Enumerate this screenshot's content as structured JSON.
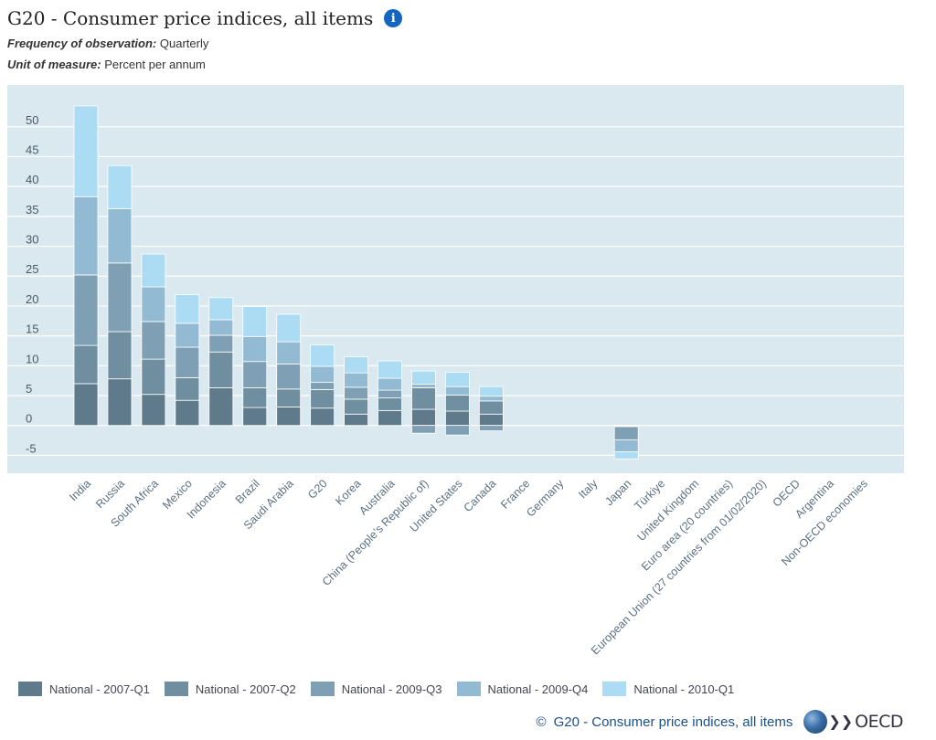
{
  "header": {
    "title": "G20 - Consumer price indices, all items",
    "frequency_label": "Frequency of observation:",
    "frequency_value": "Quarterly",
    "unit_label": "Unit of measure:",
    "unit_value": "Percent per annum"
  },
  "footer": {
    "copyright_symbol": "©",
    "source_text": "G20 - Consumer price indices, all items",
    "logo_text": "OECD"
  },
  "chart_data": {
    "type": "bar",
    "stacked": true,
    "ylim": [
      -8,
      57
    ],
    "yticks": [
      -5,
      0,
      5,
      10,
      15,
      20,
      25,
      30,
      35,
      40,
      45,
      50
    ],
    "grid": true,
    "legend_position": "bottom",
    "categories": [
      "India",
      "Russia",
      "South Africa",
      "Mexico",
      "Indonesia",
      "Brazil",
      "Saudi Arabia",
      "G20",
      "Korea",
      "Australia",
      "China (People’s Republic of)",
      "United States",
      "Canada",
      "France",
      "Germany",
      "Italy",
      "Japan",
      "Türkiye",
      "United Kingdom",
      "Euro area (20 countries)",
      "European Union (27 countries from 01/02/2020)",
      "OECD",
      "Argentina",
      "Non-OECD economies"
    ],
    "series": [
      {
        "name": "National - 2007-Q1",
        "color": "#5f7a8a",
        "values": [
          7.0,
          7.8,
          5.2,
          4.2,
          6.3,
          3.0,
          3.1,
          2.9,
          1.9,
          2.5,
          2.7,
          2.4,
          1.9,
          null,
          null,
          null,
          -0.1,
          null,
          null,
          null,
          null,
          null,
          null,
          null
        ]
      },
      {
        "name": "National - 2007-Q2",
        "color": "#6f8fa0",
        "values": [
          6.4,
          7.9,
          5.9,
          3.8,
          6.0,
          3.3,
          3.0,
          3.1,
          2.5,
          2.1,
          3.6,
          2.7,
          2.2,
          null,
          null,
          null,
          -0.1,
          null,
          null,
          null,
          null,
          null,
          null,
          null
        ]
      },
      {
        "name": "National - 2009-Q3",
        "color": "#7fa0b4",
        "values": [
          11.8,
          11.5,
          6.3,
          5.1,
          2.8,
          4.4,
          4.2,
          1.2,
          2.0,
          1.3,
          -1.3,
          -1.6,
          -0.9,
          null,
          null,
          null,
          -2.2,
          null,
          null,
          null,
          null,
          null,
          null,
          null
        ]
      },
      {
        "name": "National - 2009-Q4",
        "color": "#93bad3",
        "values": [
          13.1,
          9.1,
          5.8,
          4.0,
          2.6,
          4.2,
          3.7,
          2.7,
          2.4,
          2.0,
          0.6,
          1.4,
          0.8,
          null,
          null,
          null,
          -2.0,
          null,
          null,
          null,
          null,
          null,
          null,
          null
        ]
      },
      {
        "name": "National - 2010-Q1",
        "color": "#abdcf4",
        "values": [
          15.2,
          7.2,
          5.5,
          4.8,
          3.7,
          5.0,
          4.6,
          3.6,
          2.7,
          2.9,
          2.2,
          2.4,
          1.6,
          null,
          null,
          null,
          -1.2,
          null,
          null,
          null,
          null,
          null,
          null,
          null
        ]
      }
    ]
  }
}
